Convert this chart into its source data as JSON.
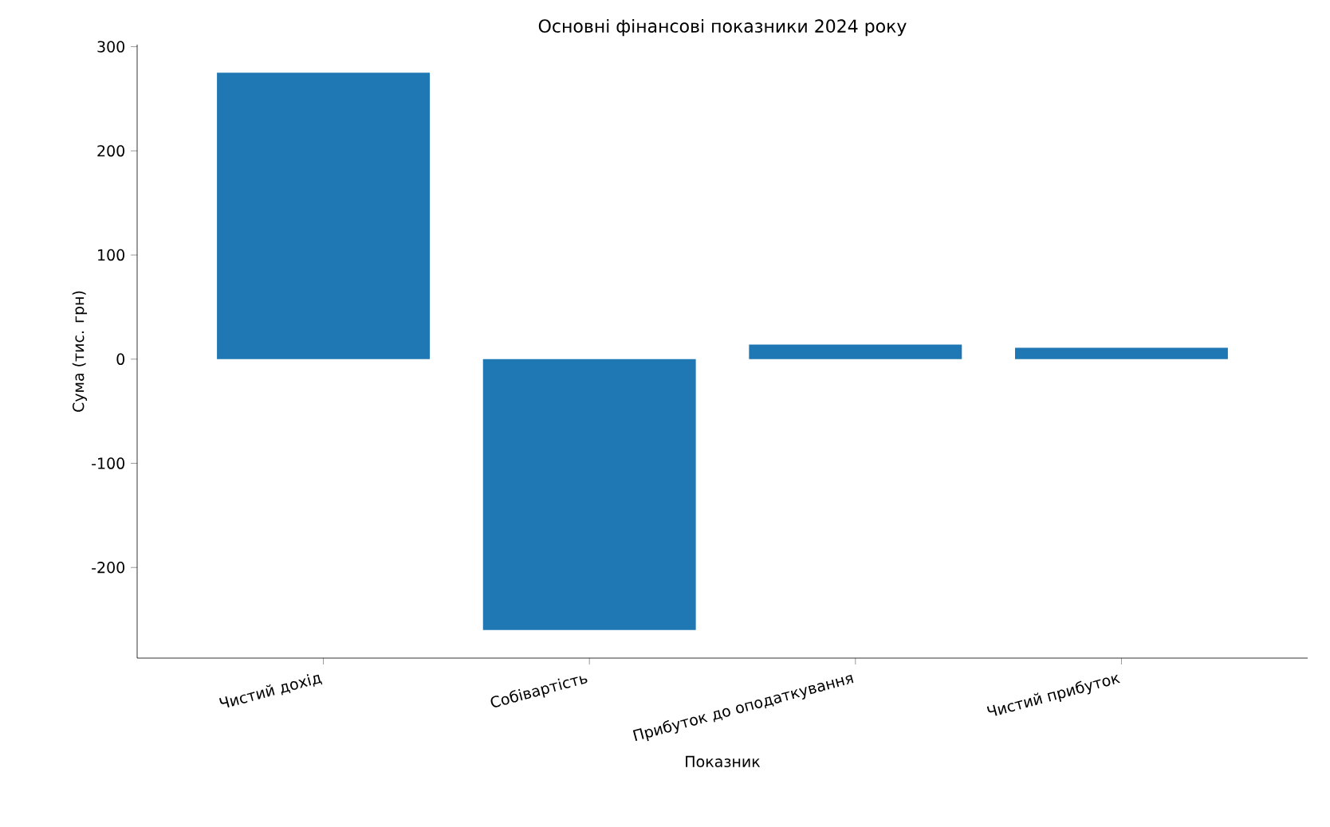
{
  "chart_data": {
    "type": "bar",
    "title": "Основні фінансові показники 2024 року",
    "xlabel": "Показник",
    "ylabel": "Сума (тис. грн)",
    "categories": [
      "Чистий дохід",
      "Собівартість",
      "Прибуток до оподаткування",
      "Чистий прибуток"
    ],
    "values": [
      275,
      -260,
      14,
      11
    ],
    "color": "#1f77b4",
    "ylim": [
      -287,
      302
    ],
    "yticks": [
      -200,
      -100,
      0,
      100,
      200,
      300
    ]
  }
}
